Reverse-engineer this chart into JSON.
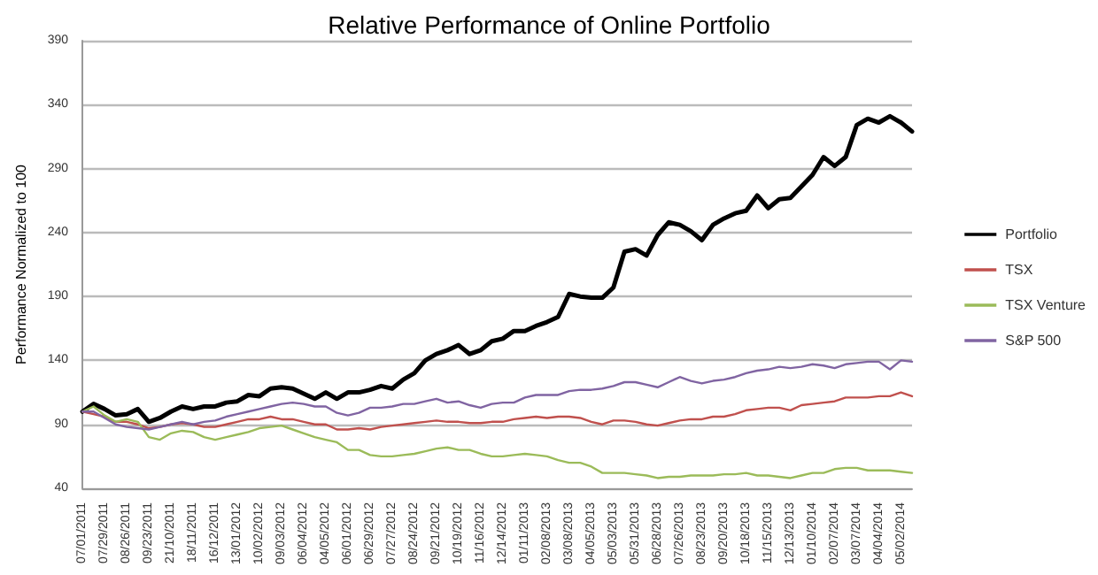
{
  "chart_data": {
    "type": "line",
    "title": "Relative Performance of Online Portfolio",
    "ylabel": "Performance Normalized to 100",
    "categories": [
      "07/01/2011",
      null,
      "07/29/2011",
      null,
      "08/26/2011",
      null,
      "09/23/2011",
      null,
      "21/10/2011",
      null,
      "18/11/2011",
      null,
      "16/12/2011",
      null,
      "13/01/2012",
      null,
      "10/02/2012",
      null,
      "09/03/2012",
      null,
      "06/04/2012",
      null,
      "04/05/2012",
      null,
      "06/01/2012",
      null,
      "06/29/2012",
      null,
      "07/27/2012",
      null,
      "08/24/2012",
      null,
      "09/21/2012",
      null,
      "10/19/2012",
      null,
      "11/16/2012",
      null,
      "12/14/2012",
      null,
      "01/11/2013",
      null,
      "02/08/2013",
      null,
      "03/08/2013",
      null,
      "04/05/2013",
      null,
      "05/03/2013",
      null,
      "05/31/2013",
      null,
      "06/28/2013",
      null,
      "07/26/2013",
      null,
      "08/23/2013",
      null,
      "09/20/2013",
      null,
      "10/18/2013",
      null,
      "11/15/2013",
      null,
      "12/13/2013",
      null,
      "01/10/2014",
      null,
      "02/07/2014",
      null,
      "03/07/2014",
      null,
      "04/04/2014",
      null,
      "05/02/2014",
      null
    ],
    "series": [
      {
        "name": "Portfolio",
        "color": "#000000",
        "values": [
          100,
          106,
          102,
          97,
          98,
          102,
          92,
          95,
          100,
          104,
          102,
          104,
          104,
          107,
          108,
          113,
          112,
          118,
          119,
          118,
          114,
          110,
          115,
          110,
          115,
          115,
          117,
          120,
          118,
          125,
          130,
          140,
          145,
          148,
          152,
          145,
          148,
          155,
          157,
          163,
          163,
          167,
          170,
          174,
          192,
          190,
          189,
          189,
          197,
          225,
          227,
          222,
          238,
          248,
          246,
          241,
          234,
          246,
          251,
          255,
          257,
          269,
          259,
          266,
          267,
          276,
          285,
          299,
          292,
          299,
          324,
          329,
          326,
          331,
          326,
          319
        ]
      },
      {
        "name": "TSX",
        "color": "#c0504d",
        "values": [
          100,
          98,
          96,
          92,
          92,
          90,
          87,
          88,
          90,
          91,
          90,
          88,
          88,
          90,
          92,
          94,
          94,
          96,
          94,
          94,
          92,
          90,
          90,
          86,
          86,
          87,
          86,
          88,
          89,
          90,
          91,
          92,
          93,
          92,
          92,
          91,
          91,
          92,
          92,
          94,
          95,
          96,
          95,
          96,
          96,
          95,
          92,
          90,
          93,
          93,
          92,
          90,
          89,
          91,
          93,
          94,
          94,
          96,
          96,
          98,
          101,
          102,
          103,
          103,
          101,
          105,
          106,
          107,
          108,
          111,
          111,
          111,
          112,
          112,
          115,
          112
        ]
      },
      {
        "name": "TSX Venture",
        "color": "#9bbb59",
        "values": [
          100,
          104,
          97,
          92,
          94,
          92,
          80,
          78,
          83,
          85,
          84,
          80,
          78,
          80,
          82,
          84,
          87,
          88,
          89,
          86,
          83,
          80,
          78,
          76,
          70,
          70,
          66,
          65,
          65,
          66,
          67,
          69,
          71,
          72,
          70,
          70,
          67,
          65,
          65,
          66,
          67,
          66,
          65,
          62,
          60,
          60,
          57,
          52,
          52,
          52,
          51,
          50,
          48,
          49,
          49,
          50,
          50,
          50,
          51,
          51,
          52,
          50,
          50,
          49,
          48,
          50,
          52,
          52,
          55,
          56,
          56,
          54,
          54,
          54,
          53,
          52
        ]
      },
      {
        "name": "S&P 500",
        "color": "#8064a2",
        "values": [
          100,
          100,
          95,
          90,
          88,
          87,
          86,
          88,
          90,
          92,
          90,
          92,
          93,
          96,
          98,
          100,
          102,
          104,
          106,
          107,
          106,
          104,
          104,
          99,
          97,
          99,
          103,
          103,
          104,
          106,
          106,
          108,
          110,
          107,
          108,
          105,
          103,
          106,
          107,
          107,
          111,
          113,
          113,
          113,
          116,
          117,
          117,
          118,
          120,
          123,
          123,
          121,
          119,
          123,
          127,
          124,
          122,
          124,
          125,
          127,
          130,
          132,
          133,
          135,
          134,
          135,
          137,
          136,
          134,
          137,
          138,
          139,
          139,
          133,
          140,
          139
        ]
      }
    ],
    "ylim": [
      40,
      390
    ],
    "yticks": [
      40,
      90,
      140,
      190,
      240,
      290,
      340,
      390
    ],
    "grid": "y",
    "legend": "right",
    "marker": "none",
    "line_style": "solid"
  }
}
